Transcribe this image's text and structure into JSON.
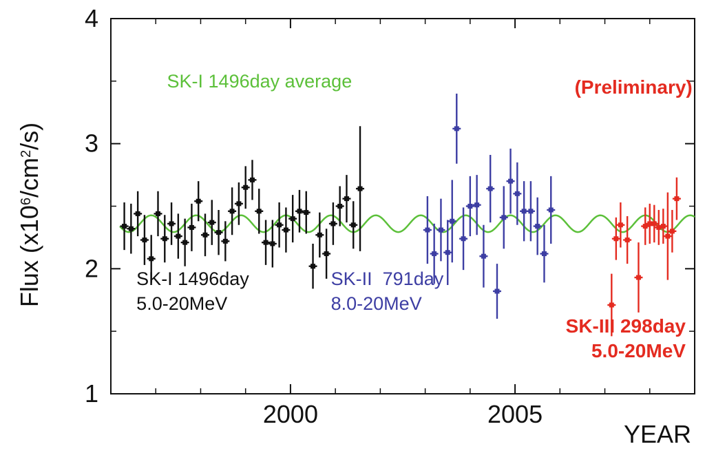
{
  "chart_data": {
    "type": "scatter",
    "title": "",
    "xlabel": "YEAR",
    "ylabel": "Flux (x10^6/cm^2/s)",
    "ylabel_parts": {
      "pre": "Flux (x10",
      "exp1": "6",
      "mid": "/cm",
      "exp2": "2",
      "post": "/s)"
    },
    "xlim": [
      1996.0,
      2009.0
    ],
    "ylim": [
      1.0,
      4.0
    ],
    "x_ticks": [
      2000,
      2005
    ],
    "y_ticks": [
      1,
      2,
      3,
      4
    ],
    "grid": false,
    "average_curve": {
      "name": "SK-I 1496day average",
      "color": "#5cc03a",
      "mean": 2.36,
      "amplitude": 0.067,
      "period_years": 1.0,
      "phase_peak_year": 1996.9,
      "x_range": [
        1996.2,
        2009.0
      ]
    },
    "series": [
      {
        "name": "SK-I",
        "color": "#111111",
        "x": [
          1996.3,
          1996.45,
          1996.6,
          1996.75,
          1996.9,
          1997.05,
          1997.2,
          1997.35,
          1997.5,
          1997.65,
          1997.8,
          1997.95,
          1998.1,
          1998.25,
          1998.4,
          1998.55,
          1998.7,
          1998.85,
          1999.0,
          1999.15,
          1999.3,
          1999.45,
          1999.6,
          1999.75,
          1999.9,
          2000.05,
          2000.2,
          2000.35,
          2000.5,
          2000.65,
          2000.8,
          2000.95,
          2001.1,
          2001.25,
          2001.4,
          2001.55
        ],
        "y": [
          2.34,
          2.32,
          2.44,
          2.23,
          2.08,
          2.44,
          2.24,
          2.36,
          2.26,
          2.21,
          2.33,
          2.54,
          2.27,
          2.37,
          2.29,
          2.22,
          2.46,
          2.52,
          2.65,
          2.71,
          2.46,
          2.21,
          2.2,
          2.35,
          2.31,
          2.4,
          2.46,
          2.45,
          2.02,
          2.27,
          2.12,
          2.36,
          2.5,
          2.56,
          2.35,
          2.64
        ],
        "err": [
          0.19,
          0.2,
          0.18,
          0.2,
          0.19,
          0.18,
          0.19,
          0.17,
          0.18,
          0.19,
          0.19,
          0.16,
          0.17,
          0.18,
          0.18,
          0.16,
          0.19,
          0.17,
          0.17,
          0.16,
          0.18,
          0.18,
          0.19,
          0.18,
          0.18,
          0.19,
          0.17,
          0.17,
          0.18,
          0.18,
          0.2,
          0.17,
          0.16,
          0.19,
          0.19,
          0.5
        ]
      },
      {
        "name": "SK-II",
        "color": "#3d3ea3",
        "x": [
          2003.05,
          2003.2,
          2003.35,
          2003.5,
          2003.6,
          2003.7,
          2003.85,
          2004.0,
          2004.15,
          2004.3,
          2004.45,
          2004.6,
          2004.75,
          2004.9,
          2005.05,
          2005.2,
          2005.35,
          2005.5,
          2005.65,
          2005.8
        ],
        "y": [
          2.31,
          2.12,
          2.31,
          2.13,
          2.38,
          3.12,
          2.24,
          2.5,
          2.51,
          2.1,
          2.64,
          1.82,
          2.41,
          2.7,
          2.6,
          2.46,
          2.46,
          2.34,
          2.12,
          2.47
        ],
        "err": [
          0.27,
          0.24,
          0.25,
          0.26,
          0.33,
          0.28,
          0.25,
          0.24,
          0.24,
          0.25,
          0.27,
          0.22,
          0.25,
          0.26,
          0.25,
          0.24,
          0.24,
          0.23,
          0.23,
          0.27
        ]
      },
      {
        "name": "SK-III",
        "color": "#e42b20",
        "x": [
          2007.15,
          2007.25,
          2007.35,
          2007.5,
          2007.75,
          2007.9,
          2008.0,
          2008.1,
          2008.2,
          2008.3,
          2008.4,
          2008.5,
          2008.6
        ],
        "y": [
          1.71,
          2.24,
          2.35,
          2.23,
          1.93,
          2.34,
          2.36,
          2.36,
          2.33,
          2.34,
          2.26,
          2.3,
          2.56
        ],
        "err": [
          0.25,
          0.17,
          0.18,
          0.19,
          0.28,
          0.15,
          0.16,
          0.15,
          0.14,
          0.14,
          0.35,
          0.17,
          0.17
        ]
      }
    ],
    "annotations": [
      {
        "lines": [
          "SK-I 1496day average"
        ],
        "color": "#5cc03a",
        "bold": false,
        "anchor_x": 1997.25,
        "anchor_y": 3.45,
        "align": "start"
      },
      {
        "lines": [
          "(Preliminary)"
        ],
        "color": "#e42b20",
        "bold": true,
        "anchor_x": 2008.95,
        "anchor_y": 3.4,
        "align": "end"
      },
      {
        "lines": [
          "SK-I 1496day",
          "5.0-20MeV"
        ],
        "color": "#111111",
        "bold": false,
        "anchor_x": 1996.57,
        "anchor_y": 1.87,
        "align": "start"
      },
      {
        "lines": [
          "SK-II  791day",
          "8.0-20MeV"
        ],
        "color": "#3d3ea3",
        "bold": false,
        "anchor_x": 2000.9,
        "anchor_y": 1.87,
        "align": "start"
      },
      {
        "lines": [
          "SK-III 298day",
          "5.0-20MeV"
        ],
        "color": "#e42b20",
        "bold": true,
        "anchor_x": 2008.8,
        "anchor_y": 1.49,
        "align": "end"
      }
    ]
  }
}
